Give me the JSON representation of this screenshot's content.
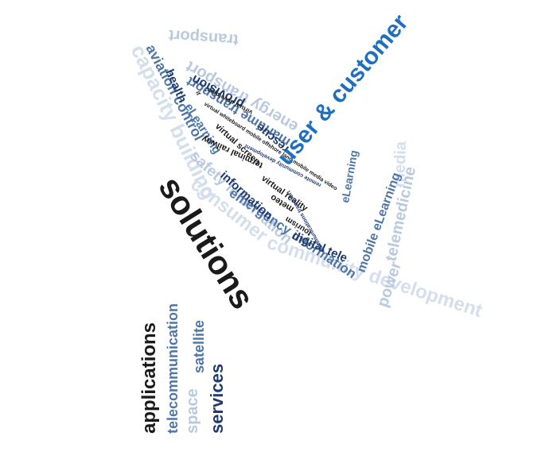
{
  "word_cloud": {
    "focus": {
      "solutions": "solutions",
      "user_customer": "user & customer"
    },
    "stem": {
      "applications": "applications",
      "telecommunication": "telecommunication",
      "space": "space",
      "satellite": "satellite",
      "services": "services"
    },
    "outer_ring": {
      "capacity_building": "capacity building",
      "consumer": "consumer",
      "community_development": "community development",
      "power": "power",
      "telemedicine": "telemedicine",
      "media": "media",
      "transport": "transport"
    },
    "middle_ring": {
      "aviation_control": "aviation control",
      "safety_information": "safety information",
      "emergency_information": "emergency information",
      "energy_transport": "energy transport",
      "maritime_transport": "maritime transport",
      "mobile_elearning": "mobile eLearning"
    },
    "inner_ring": {
      "health": "health",
      "elearning": "eLearning",
      "information": "information",
      "digital_tele": "digital tele",
      "rescue": "rescue",
      "provision": "provision",
      "elearning_2": "eLearning"
    },
    "core": {
      "virtual_developm": "virtual developm",
      "terminal_railway": "terminal railway",
      "virtual_screen": "virtual screen",
      "virtual_reality": "virtual reality",
      "tourism": "tourism",
      "meteo": "meteo",
      "it": "it",
      "virtual_whiteboard": "virtual whiteboard mobile offshore land mobile media video",
      "remote_community_development": "remote community development",
      "telecommunications_transport": "communications transport"
    },
    "colors": {
      "dark": "#1a1a1a",
      "navy": "#1e3a6e",
      "blue": "#1f6fc0",
      "steel": "#4f76a8",
      "pale": "#b9c9e0",
      "faint": "#d4deec"
    }
  }
}
